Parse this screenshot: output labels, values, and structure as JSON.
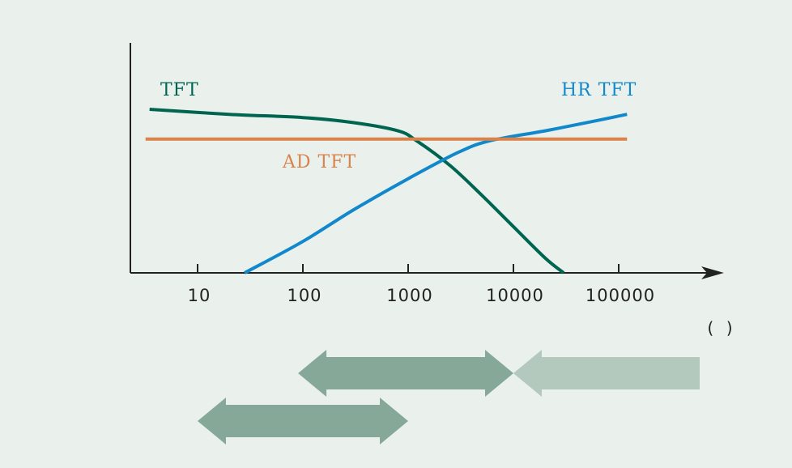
{
  "chart_data": {
    "type": "line",
    "x_scale": "log",
    "x_ticks": [
      10,
      100,
      1000,
      10000,
      100000
    ],
    "x_tick_labels": [
      "10",
      "100",
      "1000",
      "10000",
      "100000"
    ],
    "x_unit_label": "( )",
    "xlim": [
      3,
      700000
    ],
    "ylim": [
      0,
      1
    ],
    "grid": false,
    "series": [
      {
        "name": "TFT",
        "color": "#006550",
        "x": [
          3.5,
          20,
          100,
          300,
          800,
          1200,
          2500,
          5000,
          10000,
          20000,
          30000
        ],
        "y": [
          0.99,
          0.96,
          0.94,
          0.91,
          0.86,
          0.8,
          0.65,
          0.47,
          0.28,
          0.09,
          0.0
        ]
      },
      {
        "name": "HR TFT",
        "color": "#1188cc",
        "x": [
          28,
          100,
          300,
          1000,
          3000,
          6000,
          20000,
          60000,
          120000
        ],
        "y": [
          0.0,
          0.19,
          0.38,
          0.57,
          0.73,
          0.8,
          0.86,
          0.92,
          0.96
        ]
      },
      {
        "name": "AD TFT",
        "color": "#d9824a",
        "x": [
          3.2,
          120000
        ],
        "y": [
          0.81,
          0.81
        ]
      }
    ],
    "labels": [
      {
        "text": "TFT",
        "series": 0
      },
      {
        "text": "HR TFT",
        "series": 1
      },
      {
        "text": "AD TFT",
        "series": 2
      }
    ],
    "range_arrows": [
      {
        "name": "range-arrow-upper",
        "from": 90,
        "to": 10000,
        "color": "#85a898"
      },
      {
        "name": "range-arrow-right",
        "from": 10000,
        "to": 700000,
        "color": "#b3c9bd",
        "open_right": true
      },
      {
        "name": "range-arrow-lower",
        "from": 10,
        "to": 1000,
        "color": "#85a898"
      }
    ]
  }
}
